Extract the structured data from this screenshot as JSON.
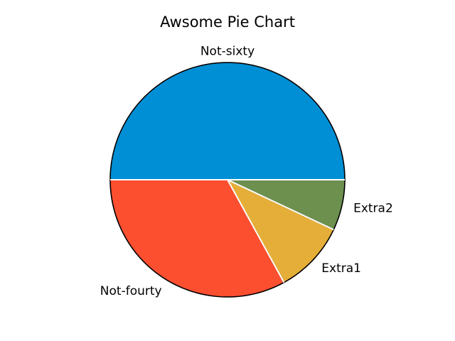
{
  "chart_data": {
    "type": "pie",
    "title": "Awsome Pie Chart",
    "slices": [
      {
        "label": "Not-sixty",
        "value": 50,
        "color": "#008fd5"
      },
      {
        "label": "Not-fourty",
        "value": 33,
        "color": "#fc4f30"
      },
      {
        "label": "Extra1",
        "value": 10,
        "color": "#e5ae38"
      },
      {
        "label": "Extra2",
        "value": 7,
        "color": "#6d904f"
      }
    ],
    "start_angle_deg": 0,
    "direction": "counterclockwise",
    "legend": "none"
  }
}
